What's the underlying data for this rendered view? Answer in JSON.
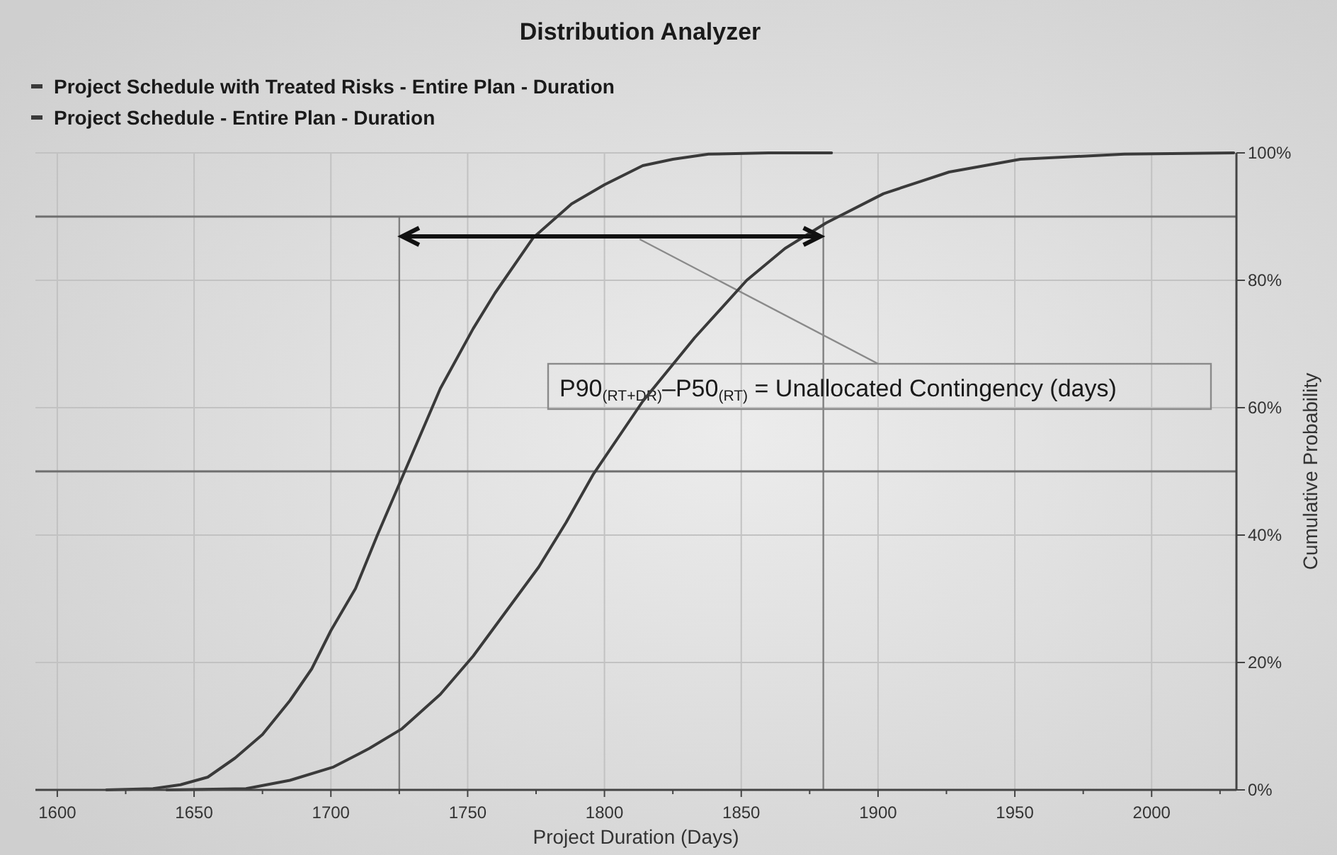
{
  "chart_data": {
    "type": "line",
    "title": "Distribution Analyzer",
    "xlabel": "Project Duration (Days)",
    "ylabel": "Cumulative Probability",
    "series": [
      {
        "name": "Project Schedule with Treated Risks - Entire Plan - Duration",
        "color": "#3a3a3a",
        "x": [
          1618,
          1635,
          1645,
          1655,
          1665,
          1675,
          1685,
          1693,
          1700,
          1709,
          1717,
          1726,
          1733,
          1740,
          1752,
          1760,
          1774,
          1788,
          1800,
          1814,
          1825,
          1838,
          1860,
          1883
        ],
        "values": [
          0,
          0.2,
          0.8,
          2,
          5,
          8.7,
          14,
          19,
          25,
          31.6,
          40,
          49,
          56,
          63,
          72.4,
          78,
          86.7,
          92,
          95,
          98,
          99,
          99.8,
          100,
          100
        ]
      },
      {
        "name": "Project Schedule - Entire Plan - Duration",
        "color": "#3a3a3a",
        "x": [
          1640,
          1669,
          1685,
          1701,
          1714,
          1726,
          1740,
          1752,
          1764,
          1776,
          1786,
          1796,
          1814,
          1833,
          1852,
          1866,
          1881,
          1902,
          1926,
          1952,
          1990,
          2030
        ],
        "values": [
          0,
          0.2,
          1.5,
          3.6,
          6.5,
          9.6,
          15,
          21,
          28,
          35,
          42,
          49.6,
          61,
          71,
          80,
          85,
          89,
          93.6,
          97,
          99,
          99.8,
          100
        ]
      }
    ],
    "xlim": [
      1592,
      2031
    ],
    "xticks": [
      1600,
      {
        "value": 1625,
        "label": null
      },
      1650,
      {
        "value": 1675,
        "label": null
      },
      1700,
      {
        "value": 1725,
        "label": null
      },
      1750,
      {
        "value": 1775,
        "label": null
      },
      1800,
      {
        "value": 1825,
        "label": null
      },
      1850,
      {
        "value": 1875,
        "label": null
      },
      1900,
      {
        "value": 1925,
        "label": null
      },
      1950,
      {
        "value": 1975,
        "label": null
      },
      2000,
      {
        "value": 2025,
        "label": null
      }
    ],
    "ylim": [
      0,
      100
    ],
    "yticks": [
      {
        "value": 0,
        "label": "0%"
      },
      {
        "value": 20,
        "label": "20%"
      },
      {
        "value": 40,
        "label": "40%"
      },
      {
        "value": 60,
        "label": "60%"
      },
      {
        "value": 80,
        "label": "80%"
      },
      {
        "value": 100,
        "label": "100%"
      }
    ],
    "grid": true,
    "legend": "top left",
    "marker": "none",
    "line_style": "solid",
    "ref_lines": [
      {
        "axis": "x",
        "value": 1725,
        "color": "#808080"
      },
      {
        "axis": "x",
        "value": 1880,
        "color": "#808080"
      },
      {
        "axis": "y",
        "value": 90,
        "color": "#6e6e6e"
      },
      {
        "axis": "y",
        "value": 50,
        "color": "#6e6e6e"
      }
    ],
    "annotations": [
      "P90$_{(RT+DR)}$–P50$_{(RT)}$ = Unallocated Contingency (days)"
    ]
  }
}
